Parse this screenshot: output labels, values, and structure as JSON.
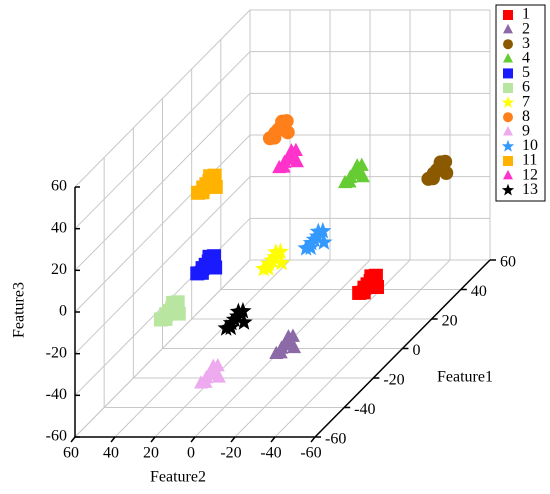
{
  "chart_data": {
    "type": "scatter3d",
    "xlabel": "Feature1",
    "ylabel": "Feature2",
    "zlabel": "Feature3",
    "xlim": [
      -60,
      60
    ],
    "ylim": [
      -60,
      60
    ],
    "zlim": [
      -60,
      60
    ],
    "xticks": [
      -60,
      -40,
      -20,
      0,
      20,
      40,
      60
    ],
    "yticks": [
      -60,
      -40,
      -20,
      0,
      20,
      40,
      60
    ],
    "zticks": [
      -60,
      -40,
      -20,
      0,
      20,
      40,
      60
    ],
    "grid": true,
    "legend": "upper right",
    "series": [
      {
        "name": "1",
        "color": "#ff0000",
        "marker": "square",
        "x": [
          -13,
          -10,
          -16,
          -11,
          -15,
          -9,
          -17,
          -12
        ],
        "y": [
          -52,
          -54,
          -50,
          -49,
          -55,
          -51,
          -53,
          -56
        ],
        "z": [
          -20,
          -18,
          -22,
          -23,
          -17,
          -19,
          -21,
          -22
        ]
      },
      {
        "name": "2",
        "color": "#8c6aa8",
        "marker": "triangle",
        "x": [
          -26,
          -23,
          -29,
          -24,
          -28,
          -22,
          -30,
          -25
        ],
        "y": [
          -20,
          -22,
          -18,
          -17,
          -23,
          -19,
          -21,
          -24
        ],
        "z": [
          -40,
          -38,
          -42,
          -43,
          -37,
          -39,
          -41,
          -42
        ]
      },
      {
        "name": "3",
        "color": "#8b5a00",
        "marker": "circle",
        "x": [
          29,
          32,
          26,
          31,
          27,
          33,
          25,
          30
        ],
        "y": [
          -56,
          -58,
          -54,
          -53,
          -59,
          -55,
          -57,
          -60
        ],
        "z": [
          5,
          7,
          3,
          2,
          8,
          6,
          4,
          3
        ]
      },
      {
        "name": "4",
        "color": "#66cc33",
        "marker": "triangle",
        "x": [
          -9,
          -6,
          -12,
          -7,
          -11,
          -5,
          -13,
          -8
        ],
        "y": [
          -42,
          -44,
          -40,
          -39,
          -45,
          -41,
          -43,
          -46
        ],
        "z": [
          30,
          32,
          28,
          27,
          33,
          31,
          29,
          28
        ]
      },
      {
        "name": "5",
        "color": "#1a1aff",
        "marker": "square",
        "x": [
          -28,
          -25,
          -31,
          -26,
          -30,
          -24,
          -32,
          -27
        ],
        "y": [
          18,
          16,
          20,
          21,
          15,
          19,
          17,
          14
        ],
        "z": [
          0,
          2,
          -2,
          -3,
          3,
          1,
          -1,
          -2
        ]
      },
      {
        "name": "6",
        "color": "#b8e6a0",
        "marker": "square",
        "x": [
          -31,
          -28,
          -34,
          -29,
          -33,
          -27,
          -35,
          -30
        ],
        "y": [
          34,
          32,
          36,
          37,
          31,
          35,
          33,
          30
        ],
        "z": [
          -20,
          -18,
          -22,
          -23,
          -17,
          -19,
          -21,
          -22
        ]
      },
      {
        "name": "7",
        "color": "#ffff00",
        "marker": "star",
        "x": [
          -25,
          -22,
          -28,
          -23,
          -27,
          -21,
          -29,
          -24
        ],
        "y": [
          -13,
          -15,
          -11,
          -10,
          -16,
          -12,
          -14,
          -17
        ],
        "z": [
          0,
          2,
          -2,
          -3,
          3,
          1,
          -1,
          -2
        ]
      },
      {
        "name": "8",
        "color": "#ff7f1a",
        "marker": "circle",
        "x": [
          -7,
          -4,
          -10,
          -5,
          -9,
          -3,
          -11,
          -6
        ],
        "y": [
          -3,
          -5,
          -1,
          0,
          -6,
          -2,
          -4,
          -7
        ],
        "z": [
          50,
          52,
          48,
          47,
          53,
          51,
          49,
          48
        ]
      },
      {
        "name": "9",
        "color": "#eeaaee",
        "marker": "triangle",
        "x": [
          -46,
          -43,
          -49,
          -44,
          -48,
          -42,
          -50,
          -45
        ],
        "y": [
          3,
          1,
          5,
          6,
          0,
          4,
          2,
          -1
        ],
        "z": [
          -40,
          -38,
          -42,
          -43,
          -37,
          -39,
          -41,
          -42
        ]
      },
      {
        "name": "10",
        "color": "#3399ff",
        "marker": "star",
        "x": [
          -11,
          -8,
          -14,
          -9,
          -13,
          -7,
          -15,
          -10
        ],
        "y": [
          -24,
          -26,
          -22,
          -21,
          -27,
          -23,
          -25,
          -28
        ],
        "z": [
          0,
          2,
          -2,
          -3,
          3,
          1,
          -1,
          -2
        ]
      },
      {
        "name": "11",
        "color": "#ffb300",
        "marker": "square",
        "x": [
          -44,
          -41,
          -47,
          -42,
          -46,
          -40,
          -48,
          -43
        ],
        "y": [
          6,
          4,
          8,
          9,
          3,
          7,
          5,
          2
        ],
        "z": [
          50,
          52,
          48,
          47,
          53,
          51,
          49,
          48
        ]
      },
      {
        "name": "12",
        "color": "#ff33cc",
        "marker": "triangle",
        "x": [
          -13,
          -10,
          -16,
          -11,
          -15,
          -9,
          -17,
          -12
        ],
        "y": [
          -12,
          -14,
          -10,
          -9,
          -15,
          -11,
          -13,
          -16
        ],
        "z": [
          40,
          42,
          38,
          37,
          43,
          41,
          39,
          38
        ]
      },
      {
        "name": "13",
        "color": "#000000",
        "marker": "star",
        "x": [
          -37,
          -34,
          -40,
          -35,
          -39,
          -33,
          -41,
          -36
        ],
        "y": [
          -3,
          -5,
          -1,
          0,
          -6,
          -2,
          -4,
          -7
        ],
        "z": [
          -20,
          -18,
          -22,
          -23,
          -17,
          -19,
          -21,
          -22
        ]
      }
    ]
  }
}
